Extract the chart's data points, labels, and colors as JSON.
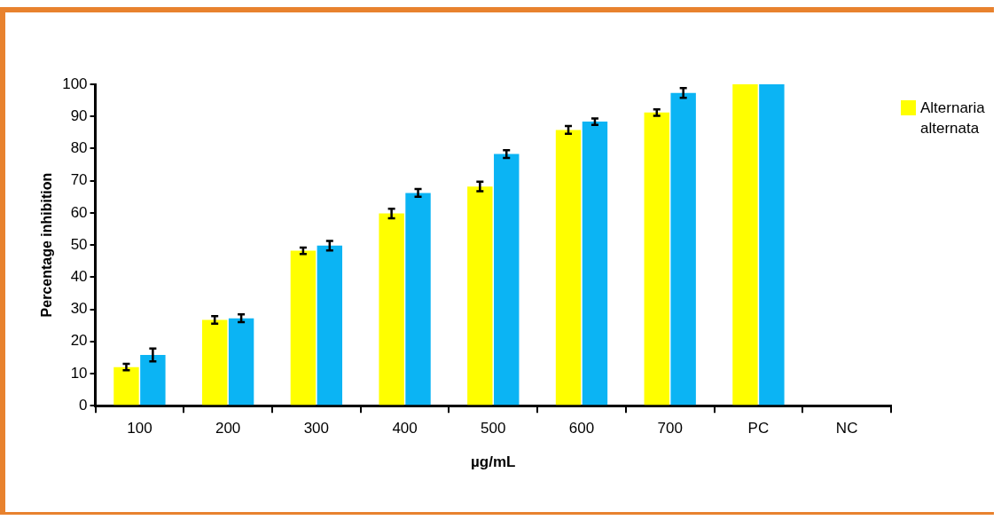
{
  "chart_data": {
    "type": "bar",
    "xlabel": "µg/mL",
    "ylabel": "Percentage inhibition",
    "categories": [
      "100",
      "200",
      "300",
      "400",
      "500",
      "600",
      "700",
      "PC",
      "NC"
    ],
    "series": [
      {
        "name": "Alternaria alternata",
        "color": "#ffff00",
        "values": [
          12,
          26.7,
          48.2,
          59.8,
          68.2,
          85.8,
          91.2,
          100,
          0
        ],
        "errors": [
          1,
          1.2,
          1,
          1.5,
          1.5,
          1.2,
          1,
          null,
          null
        ]
      },
      {
        "color": "#0bb4f4",
        "values": [
          15.8,
          27.2,
          49.8,
          66.2,
          78.3,
          88.4,
          97.3,
          100,
          0
        ],
        "errors": [
          2,
          1.2,
          1.5,
          1.2,
          1.2,
          1,
          1.5,
          null,
          null
        ]
      }
    ],
    "ylim": [
      0,
      100
    ],
    "yticks": [
      0,
      10,
      20,
      30,
      40,
      50,
      60,
      70,
      80,
      90,
      100
    ],
    "grid": false,
    "legend": "top right"
  }
}
